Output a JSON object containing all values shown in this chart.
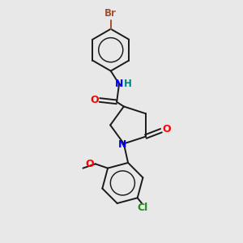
{
  "background_color": "#e8e8e8",
  "bond_color": "#1a1a1a",
  "atom_colors": {
    "Br": "#A0522D",
    "N": "#0000FF",
    "O": "#FF0000",
    "Cl": "#228B22",
    "H": "#008080",
    "C": "#1a1a1a"
  },
  "figsize": [
    3.0,
    3.0
  ],
  "dpi": 100
}
